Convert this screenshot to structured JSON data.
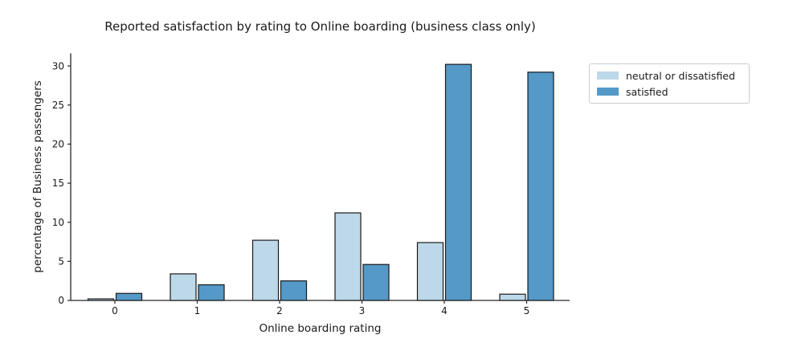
{
  "chart_data": {
    "type": "bar",
    "title": "Reported satisfaction by rating to Online boarding (business class only)",
    "xlabel": "Online boarding rating",
    "ylabel": "percentage of Business passengers",
    "categories": [
      "0",
      "1",
      "2",
      "3",
      "4",
      "5"
    ],
    "series": [
      {
        "name": "neutral or dissatisfied",
        "color": "#bdd9e9",
        "values": [
          0.2,
          3.4,
          7.7,
          11.2,
          7.4,
          0.8
        ]
      },
      {
        "name": "satisfied",
        "color": "#5499c7",
        "values": [
          0.9,
          2.0,
          2.5,
          4.6,
          30.2,
          29.2
        ]
      }
    ],
    "ylim": [
      0,
      31.6
    ],
    "yticks": [
      0,
      5,
      10,
      15,
      20,
      25,
      30
    ],
    "grid": false,
    "legend_position": "outside upper right",
    "bar_edge_color": "#1a1a1a",
    "axis_color": "#262626",
    "background": "#ffffff"
  }
}
